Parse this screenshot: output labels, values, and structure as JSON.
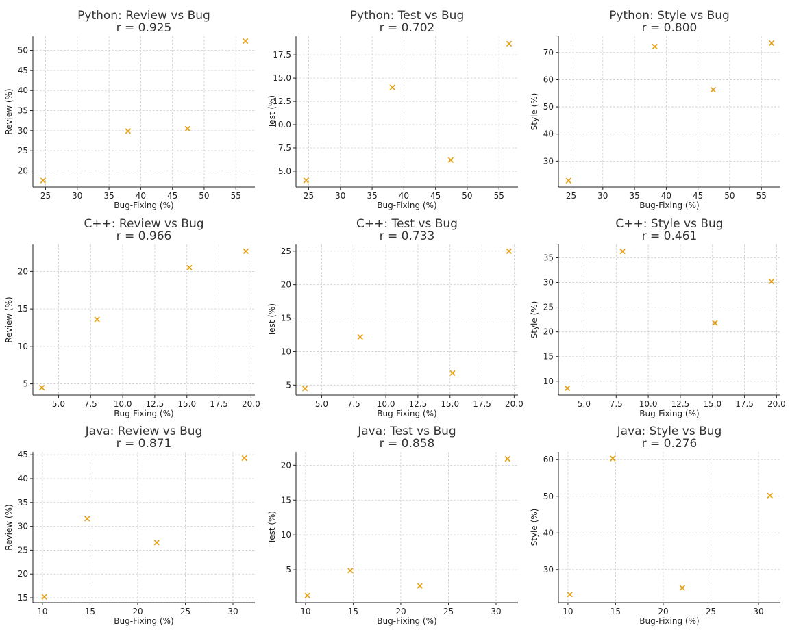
{
  "marker_color": "#E6A117",
  "chart_data": [
    {
      "type": "scatter",
      "title": "Python: Review vs Bug",
      "subtitle": "r = 0.925",
      "xlabel": "Bug-Fixing (%)",
      "ylabel": "Review (%)",
      "xlim": [
        23,
        58
      ],
      "ylim": [
        16,
        53.5
      ],
      "xticks": [
        25,
        30,
        35,
        40,
        45,
        50,
        55
      ],
      "yticks": [
        20,
        25,
        30,
        35,
        40,
        45,
        50
      ],
      "yticklabels": null,
      "points": [
        {
          "x": 24.6,
          "y": 17.6
        },
        {
          "x": 38.0,
          "y": 29.9
        },
        {
          "x": 47.4,
          "y": 30.5
        },
        {
          "x": 56.5,
          "y": 52.3
        }
      ]
    },
    {
      "type": "scatter",
      "title": "Python: Test vs Bug",
      "subtitle": "r = 0.702",
      "xlabel": "Bug-Fixing (%)",
      "ylabel": "Test (%)",
      "xlim": [
        23,
        58
      ],
      "ylim": [
        3.3,
        19.5
      ],
      "xticks": [
        25,
        30,
        35,
        40,
        45,
        50,
        55
      ],
      "yticks": [
        5,
        7.5,
        10,
        12.5,
        15,
        17.5
      ],
      "yticklabels": [
        "5.0",
        "7.5",
        "10.0",
        "12.5",
        "15.0",
        "17.5"
      ],
      "points": [
        {
          "x": 24.6,
          "y": 4.0
        },
        {
          "x": 38.2,
          "y": 14.0
        },
        {
          "x": 47.4,
          "y": 6.2
        },
        {
          "x": 56.6,
          "y": 18.7
        }
      ]
    },
    {
      "type": "scatter",
      "title": "Python: Style vs Bug",
      "subtitle": "r = 0.800",
      "xlabel": "Bug-Fixing (%)",
      "ylabel": "Style (%)",
      "xlim": [
        23,
        58
      ],
      "ylim": [
        20.5,
        76
      ],
      "xticks": [
        25,
        30,
        35,
        40,
        45,
        50,
        55
      ],
      "yticks": [
        30,
        40,
        50,
        60,
        70
      ],
      "yticklabels": null,
      "points": [
        {
          "x": 24.6,
          "y": 22.8
        },
        {
          "x": 38.2,
          "y": 72.2
        },
        {
          "x": 47.4,
          "y": 56.3
        },
        {
          "x": 56.6,
          "y": 73.5
        }
      ]
    },
    {
      "type": "scatter",
      "title": "C++: Review vs Bug",
      "subtitle": "r = 0.966",
      "xlabel": "Bug-Fixing (%)",
      "ylabel": "Review (%)",
      "xlim": [
        3,
        20.3
      ],
      "ylim": [
        3.5,
        23.6
      ],
      "xticks": [
        5,
        7.5,
        10,
        12.5,
        15,
        17.5,
        20
      ],
      "yticks": [
        5,
        10,
        15,
        20
      ],
      "yticklabels": null,
      "xticklabels": [
        "5.0",
        "7.5",
        "10.0",
        "12.5",
        "15.0",
        "17.5",
        "20.0"
      ],
      "points": [
        {
          "x": 3.7,
          "y": 4.5
        },
        {
          "x": 8.0,
          "y": 13.6
        },
        {
          "x": 15.2,
          "y": 20.5
        },
        {
          "x": 19.6,
          "y": 22.7
        }
      ]
    },
    {
      "type": "scatter",
      "title": "C++: Test vs Bug",
      "subtitle": "r = 0.733",
      "xlabel": "Bug-Fixing (%)",
      "ylabel": "Test (%)",
      "xlim": [
        3,
        20.3
      ],
      "ylim": [
        3.5,
        26
      ],
      "xticks": [
        5,
        7.5,
        10,
        12.5,
        15,
        17.5,
        20
      ],
      "yticks": [
        5,
        10,
        15,
        20,
        25
      ],
      "yticklabels": null,
      "xticklabels": [
        "5.0",
        "7.5",
        "10.0",
        "12.5",
        "15.0",
        "17.5",
        "20.0"
      ],
      "points": [
        {
          "x": 3.7,
          "y": 4.5
        },
        {
          "x": 8.0,
          "y": 12.2
        },
        {
          "x": 15.2,
          "y": 6.8
        },
        {
          "x": 19.6,
          "y": 25.0
        }
      ]
    },
    {
      "type": "scatter",
      "title": "C++: Style vs Bug",
      "subtitle": "r = 0.461",
      "xlabel": "Bug-Fixing (%)",
      "ylabel": "Style (%)",
      "xlim": [
        3,
        20.3
      ],
      "ylim": [
        7.2,
        37.7
      ],
      "xticks": [
        5,
        7.5,
        10,
        12.5,
        15,
        17.5,
        20
      ],
      "yticks": [
        10,
        15,
        20,
        25,
        30,
        35
      ],
      "yticklabels": null,
      "xticklabels": [
        "5.0",
        "7.5",
        "10.0",
        "12.5",
        "15.0",
        "17.5",
        "20.0"
      ],
      "points": [
        {
          "x": 3.7,
          "y": 8.6
        },
        {
          "x": 8.0,
          "y": 36.3
        },
        {
          "x": 15.2,
          "y": 21.8
        },
        {
          "x": 19.6,
          "y": 30.2
        }
      ]
    },
    {
      "type": "scatter",
      "title": "Java: Review vs Bug",
      "subtitle": "r = 0.871",
      "xlabel": "Bug-Fixing (%)",
      "ylabel": "Review (%)",
      "xlim": [
        9,
        32.3
      ],
      "ylim": [
        14,
        45.6
      ],
      "xticks": [
        10,
        15,
        20,
        25,
        30
      ],
      "yticks": [
        15,
        20,
        25,
        30,
        35,
        40,
        45
      ],
      "yticklabels": null,
      "points": [
        {
          "x": 10.2,
          "y": 15.2
        },
        {
          "x": 14.7,
          "y": 31.6
        },
        {
          "x": 22.0,
          "y": 26.6
        },
        {
          "x": 31.2,
          "y": 44.3
        }
      ]
    },
    {
      "type": "scatter",
      "title": "Java: Test vs Bug",
      "subtitle": "r = 0.858",
      "xlabel": "Bug-Fixing (%)",
      "ylabel": "Test (%)",
      "xlim": [
        9,
        32.3
      ],
      "ylim": [
        0.3,
        21.9
      ],
      "xticks": [
        10,
        15,
        20,
        25,
        30
      ],
      "yticks": [
        5,
        10,
        15,
        20
      ],
      "yticklabels": null,
      "points": [
        {
          "x": 10.2,
          "y": 1.3
        },
        {
          "x": 14.7,
          "y": 4.9
        },
        {
          "x": 22.0,
          "y": 2.7
        },
        {
          "x": 31.2,
          "y": 20.9
        }
      ]
    },
    {
      "type": "scatter",
      "title": "Java: Style vs Bug",
      "subtitle": "r = 0.276",
      "xlabel": "Bug-Fixing (%)",
      "ylabel": "Style (%)",
      "xlim": [
        9,
        32.3
      ],
      "ylim": [
        21,
        62.1
      ],
      "xticks": [
        10,
        15,
        20,
        25,
        30
      ],
      "yticks": [
        30,
        40,
        50,
        60
      ],
      "yticklabels": null,
      "points": [
        {
          "x": 10.2,
          "y": 23.2
        },
        {
          "x": 14.7,
          "y": 60.3
        },
        {
          "x": 22.0,
          "y": 25.0
        },
        {
          "x": 31.2,
          "y": 50.2
        }
      ]
    }
  ]
}
